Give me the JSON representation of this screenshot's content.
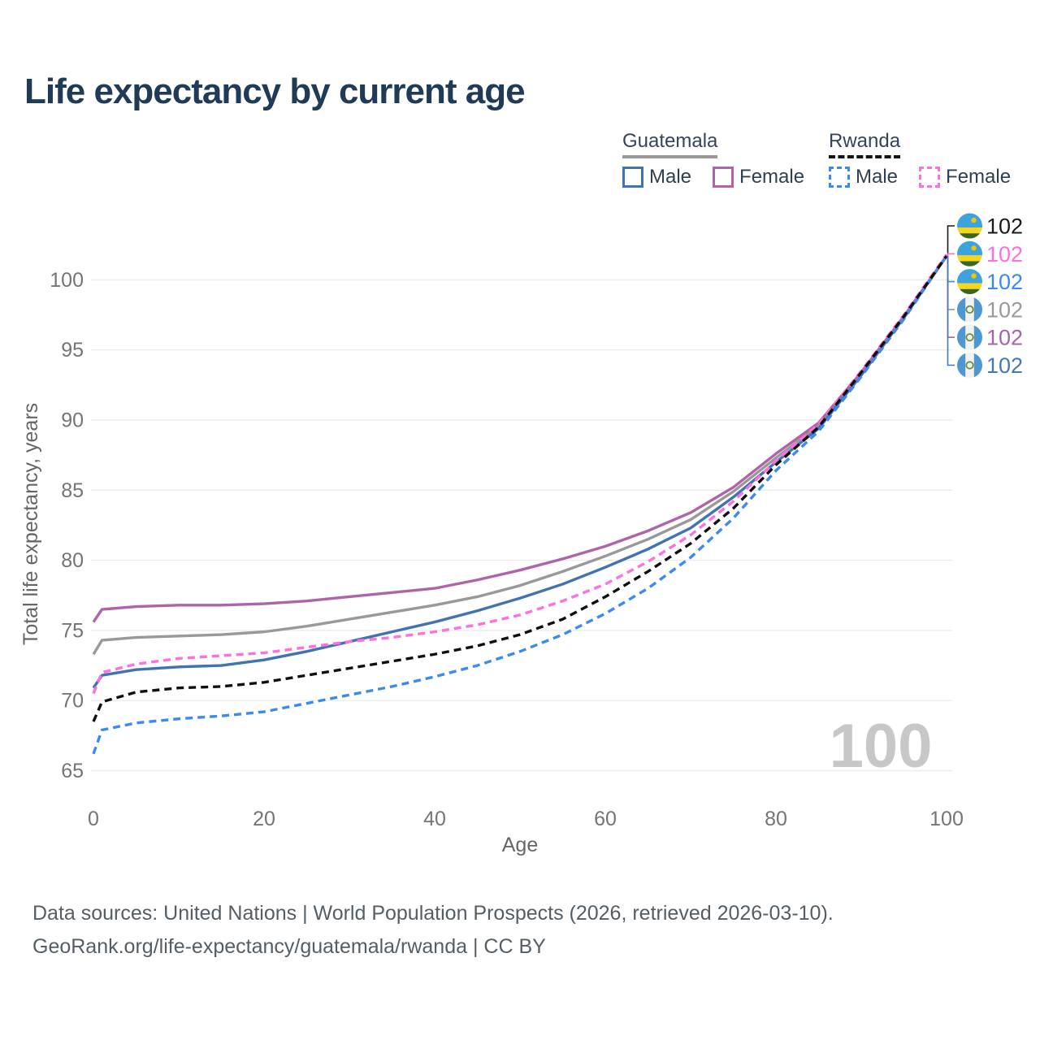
{
  "title": "Life expectancy by current age",
  "legend": {
    "groups": [
      {
        "country": "Guatemala",
        "line": {
          "color": "#999999",
          "dashed": false
        },
        "items": [
          {
            "label": "Male",
            "color": "#4173b3",
            "dashed": false
          },
          {
            "label": "Female",
            "color": "#b064a8",
            "dashed": false
          }
        ]
      },
      {
        "country": "Rwanda",
        "line": {
          "color": "#141414",
          "dashed": true
        },
        "items": [
          {
            "label": "Male",
            "color": "#3b8af2",
            "dashed": true
          },
          {
            "label": "Female",
            "color": "#ff70df",
            "dashed": true
          }
        ]
      }
    ]
  },
  "chart_data": {
    "type": "line",
    "title": "Life expectancy by current age",
    "xlabel": "Age",
    "ylabel": "Total life expectancy, years",
    "xlim": [
      0,
      100
    ],
    "ylim": [
      64.5,
      103
    ],
    "x_ticks": [
      0,
      20,
      40,
      60,
      80,
      100
    ],
    "y_ticks": [
      65,
      70,
      75,
      80,
      85,
      90,
      95,
      100
    ],
    "grid": "horizontal",
    "legend_position": "top-right",
    "watermark": "100",
    "x": [
      0,
      1,
      5,
      10,
      15,
      20,
      25,
      30,
      35,
      40,
      45,
      50,
      55,
      60,
      65,
      70,
      75,
      80,
      85,
      90,
      95,
      100
    ],
    "series": [
      {
        "name": "Guatemala Both sexes",
        "color": "#999999",
        "dashed": false,
        "values": [
          73.3,
          74.3,
          74.5,
          74.6,
          74.7,
          74.9,
          75.3,
          75.8,
          76.3,
          76.8,
          77.4,
          78.2,
          79.2,
          80.3,
          81.5,
          82.9,
          84.9,
          87.3,
          89.6,
          93.3,
          97.3,
          101.7
        ]
      },
      {
        "name": "Guatemala Male",
        "color": "#4173b3",
        "dashed": false,
        "values": [
          70.9,
          71.8,
          72.2,
          72.4,
          72.5,
          72.9,
          73.5,
          74.2,
          74.9,
          75.6,
          76.4,
          77.3,
          78.3,
          79.5,
          80.8,
          82.3,
          84.5,
          87.0,
          89.4,
          93.2,
          97.3,
          101.7
        ]
      },
      {
        "name": "Guatemala Female",
        "color": "#b064a8",
        "dashed": false,
        "values": [
          75.6,
          76.5,
          76.7,
          76.8,
          76.8,
          76.9,
          77.1,
          77.4,
          77.7,
          78.0,
          78.6,
          79.3,
          80.1,
          81.0,
          82.1,
          83.4,
          85.2,
          87.6,
          89.8,
          93.4,
          97.4,
          101.7
        ]
      },
      {
        "name": "Rwanda Male",
        "color": "#3b8af2",
        "dashed": true,
        "values": [
          66.2,
          67.9,
          68.4,
          68.7,
          68.9,
          69.2,
          69.8,
          70.4,
          71.0,
          71.7,
          72.5,
          73.5,
          74.7,
          76.2,
          78.0,
          80.2,
          83.0,
          86.4,
          89.2,
          93.1,
          97.2,
          101.7
        ]
      },
      {
        "name": "Rwanda Female",
        "color": "#ff70df",
        "dashed": true,
        "values": [
          70.5,
          72.0,
          72.6,
          73.0,
          73.2,
          73.4,
          73.8,
          74.2,
          74.5,
          74.9,
          75.4,
          76.1,
          77.1,
          78.3,
          79.9,
          81.8,
          84.2,
          87.1,
          89.7,
          93.5,
          97.5,
          101.8
        ]
      },
      {
        "name": "Rwanda Both sexes",
        "color": "#0f0f0f",
        "dashed": true,
        "values": [
          68.5,
          69.9,
          70.6,
          70.9,
          71.0,
          71.3,
          71.8,
          72.3,
          72.8,
          73.3,
          73.9,
          74.7,
          75.8,
          77.4,
          79.2,
          81.2,
          83.7,
          86.8,
          89.5,
          93.4,
          97.4,
          101.7
        ]
      }
    ],
    "end_labels": [
      {
        "value": "102",
        "flag": "rwanda",
        "series": "Rwanda Both sexes",
        "color": "#1a1a1a"
      },
      {
        "value": "102",
        "flag": "rwanda",
        "series": "Rwanda Female",
        "color": "#ff70df"
      },
      {
        "value": "102",
        "flag": "rwanda",
        "series": "Rwanda Male",
        "color": "#3b8af2"
      },
      {
        "value": "102",
        "flag": "guatemala",
        "series": "Guatemala Both sexes",
        "color": "#9a9a9a"
      },
      {
        "value": "102",
        "flag": "guatemala",
        "series": "Guatemala Female",
        "color": "#a864a8"
      },
      {
        "value": "102",
        "flag": "guatemala",
        "series": "Guatemala Male",
        "color": "#4677b8"
      }
    ]
  },
  "footer": {
    "line1": "Data sources: United Nations | World Population Prospects (2026, retrieved 2026-03-10).",
    "line2": "GeoRank.org/life-expectancy/guatemala/rwanda | CC BY"
  }
}
